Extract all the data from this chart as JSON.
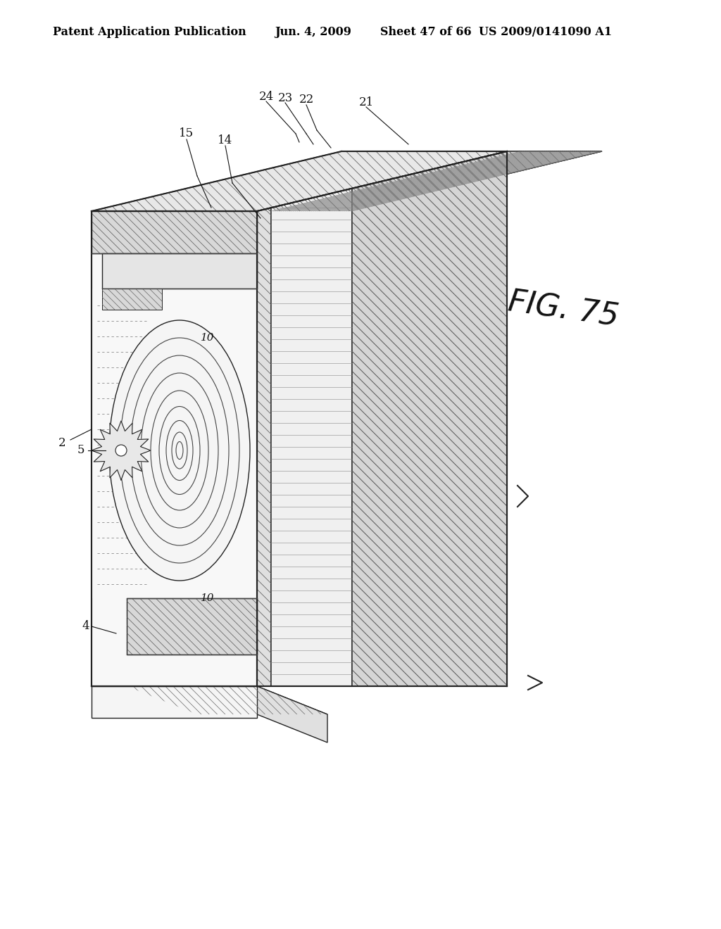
{
  "bg_color": "#ffffff",
  "line_color": "#222222",
  "header_text": "Patent Application Publication",
  "header_date": "Jun. 4, 2009",
  "header_sheet": "Sheet 47 of 66",
  "header_patent": "US 2009/0141090 A1",
  "fig_label": "FIG. 75",
  "title_fontsize": 11.5,
  "label_fontsize": 12,
  "fig_fontsize": 32
}
